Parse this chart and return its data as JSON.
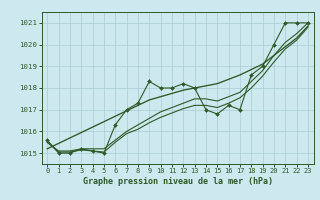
{
  "title": "Graphe pression niveau de la mer (hPa)",
  "background_color": "#cde8ee",
  "grid_color": "#aaccd4",
  "line_color": "#2d5a27",
  "x_ticks": [
    0,
    1,
    2,
    3,
    4,
    5,
    6,
    7,
    8,
    9,
    10,
    11,
    12,
    13,
    14,
    15,
    16,
    17,
    18,
    19,
    20,
    21,
    22,
    23
  ],
  "ylim": [
    1014.5,
    1021.5
  ],
  "yticks": [
    1015,
    1016,
    1017,
    1018,
    1019,
    1020,
    1021
  ],
  "data_line": [
    1015.6,
    1015.0,
    1015.0,
    1015.2,
    1015.1,
    1015.0,
    1016.3,
    1017.0,
    1017.3,
    1018.3,
    1018.0,
    1018.0,
    1018.2,
    1018.0,
    1017.0,
    1016.8,
    1017.2,
    1017.0,
    1018.6,
    1019.0,
    1020.0,
    1021.0,
    1021.0,
    1021.0
  ],
  "smooth_line1": [
    1015.5,
    1015.1,
    1015.1,
    1015.2,
    1015.2,
    1015.2,
    1015.6,
    1016.0,
    1016.3,
    1016.6,
    1016.9,
    1017.1,
    1017.3,
    1017.5,
    1017.5,
    1017.4,
    1017.6,
    1017.8,
    1018.3,
    1018.8,
    1019.5,
    1020.1,
    1020.5,
    1021.0
  ],
  "smooth_line2": [
    1015.5,
    1015.05,
    1015.05,
    1015.15,
    1015.1,
    1015.05,
    1015.5,
    1015.9,
    1016.1,
    1016.4,
    1016.65,
    1016.85,
    1017.05,
    1017.2,
    1017.2,
    1017.1,
    1017.3,
    1017.55,
    1018.0,
    1018.55,
    1019.2,
    1019.8,
    1020.2,
    1020.8
  ],
  "trend_line": [
    1015.2,
    1015.45,
    1015.7,
    1015.95,
    1016.2,
    1016.45,
    1016.7,
    1016.95,
    1017.2,
    1017.45,
    1017.6,
    1017.75,
    1017.9,
    1018.0,
    1018.1,
    1018.2,
    1018.4,
    1018.6,
    1018.85,
    1019.1,
    1019.5,
    1019.9,
    1020.3,
    1020.85
  ],
  "xlim": [
    -0.5,
    23.5
  ],
  "title_fontsize": 6.0,
  "tick_fontsize": 5.0,
  "marker_size": 2.0,
  "line_width": 0.8
}
